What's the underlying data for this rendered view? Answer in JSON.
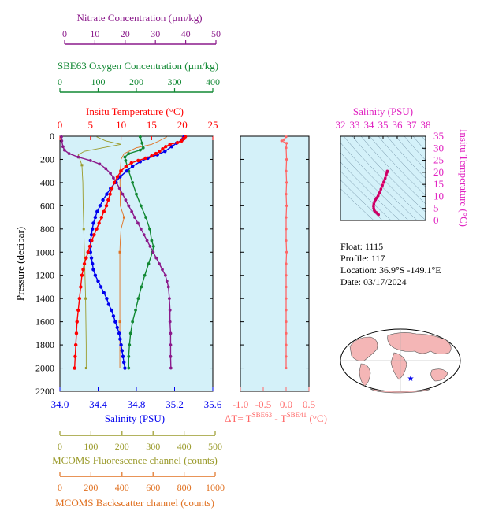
{
  "info": {
    "float": "Float:  1115",
    "profile": "Profile:  117",
    "location": "Location:  36.9°S  -149.1°E",
    "date": "Date:  03/17/2024"
  },
  "colors": {
    "nitrate": "#8b1a8b",
    "oxygen": "#118833",
    "temperature": "#ff0000",
    "salinity": "#0000ee",
    "fluorescence": "#9a9a2a",
    "backscatter": "#e07020",
    "deltaT": "#ff6666",
    "ts_label": "#e020c0",
    "panel_bg": "#d4f1f9"
  },
  "chart_data": [
    {
      "type": "line",
      "name": "profile-panel",
      "ylabel": "Pressure (decibar)",
      "ylim": [
        2200,
        0
      ],
      "yticks": [
        0,
        200,
        400,
        600,
        800,
        1000,
        1200,
        1400,
        1600,
        1800,
        2000,
        2200
      ],
      "axes": {
        "nitrate": {
          "label": "Nitrate Concentration (µm/kg)",
          "range": [
            0,
            50
          ],
          "ticks": [
            0,
            10,
            20,
            30,
            40,
            50
          ]
        },
        "oxygen": {
          "label": "SBE63 Oxygen Concentration (µm/kg)",
          "range": [
            0,
            400
          ],
          "ticks": [
            0,
            100,
            200,
            300,
            400
          ]
        },
        "temperature": {
          "label": "Insitu Temperature (°C)",
          "range": [
            0,
            25
          ],
          "ticks": [
            0,
            5,
            10,
            15,
            20,
            25
          ]
        },
        "salinity": {
          "label": "Salinity (PSU)",
          "range": [
            34.0,
            35.6
          ],
          "ticks": [
            "34.0",
            "34.4",
            "34.8",
            "35.2",
            "35.6"
          ]
        },
        "fluorescence": {
          "label": "MCOMS Fluorescence channel (counts)",
          "range": [
            0,
            500
          ],
          "ticks": [
            0,
            100,
            200,
            300,
            400,
            500
          ]
        },
        "backscatter": {
          "label": "MCOMS Backscatter channel (counts)",
          "range": [
            0,
            1000
          ],
          "ticks": [
            0,
            200,
            400,
            600,
            800,
            1000
          ]
        }
      },
      "series": [
        {
          "key": "temperature",
          "points": [
            [
              20.5,
              5
            ],
            [
              20.3,
              20
            ],
            [
              19.9,
              40
            ],
            [
              19.2,
              55
            ],
            [
              18.0,
              70
            ],
            [
              17.3,
              90
            ],
            [
              16.8,
              110
            ],
            [
              16.3,
              130
            ],
            [
              15.7,
              150
            ],
            [
              15.0,
              170
            ],
            [
              14.0,
              190
            ],
            [
              12.8,
              210
            ],
            [
              11.7,
              230
            ],
            [
              10.8,
              260
            ],
            [
              10.0,
              300
            ],
            [
              9.4,
              350
            ],
            [
              8.9,
              400
            ],
            [
              8.5,
              450
            ],
            [
              8.2,
              500
            ],
            [
              7.9,
              550
            ],
            [
              7.6,
              600
            ],
            [
              7.2,
              650
            ],
            [
              6.8,
              700
            ],
            [
              6.4,
              750
            ],
            [
              6.0,
              800
            ],
            [
              5.6,
              850
            ],
            [
              5.2,
              900
            ],
            [
              4.9,
              950
            ],
            [
              4.6,
              1000
            ],
            [
              4.3,
              1050
            ],
            [
              4.0,
              1100
            ],
            [
              3.8,
              1150
            ],
            [
              3.6,
              1200
            ],
            [
              3.4,
              1300
            ],
            [
              3.2,
              1400
            ],
            [
              3.0,
              1500
            ],
            [
              2.8,
              1600
            ],
            [
              2.7,
              1700
            ],
            [
              2.6,
              1800
            ],
            [
              2.5,
              1900
            ],
            [
              2.4,
              2000
            ]
          ]
        },
        {
          "key": "salinity",
          "points": [
            [
              35.3,
              5
            ],
            [
              35.28,
              30
            ],
            [
              35.22,
              60
            ],
            [
              35.17,
              90
            ],
            [
              35.1,
              130
            ],
            [
              35.02,
              160
            ],
            [
              34.92,
              190
            ],
            [
              34.84,
              220
            ],
            [
              34.76,
              260
            ],
            [
              34.7,
              300
            ],
            [
              34.63,
              350
            ],
            [
              34.58,
              400
            ],
            [
              34.53,
              450
            ],
            [
              34.49,
              500
            ],
            [
              34.45,
              550
            ],
            [
              34.42,
              600
            ],
            [
              34.39,
              650
            ],
            [
              34.37,
              700
            ],
            [
              34.35,
              750
            ],
            [
              34.34,
              800
            ],
            [
              34.33,
              850
            ],
            [
              34.32,
              900
            ],
            [
              34.32,
              950
            ],
            [
              34.32,
              1000
            ],
            [
              34.33,
              1050
            ],
            [
              34.34,
              1100
            ],
            [
              34.35,
              1150
            ],
            [
              34.37,
              1200
            ],
            [
              34.4,
              1250
            ],
            [
              34.43,
              1300
            ],
            [
              34.46,
              1350
            ],
            [
              34.49,
              1400
            ],
            [
              34.51,
              1450
            ],
            [
              34.54,
              1500
            ],
            [
              34.56,
              1550
            ],
            [
              34.58,
              1600
            ],
            [
              34.6,
              1650
            ],
            [
              34.62,
              1700
            ],
            [
              34.63,
              1750
            ],
            [
              34.64,
              1800
            ],
            [
              34.65,
              1850
            ],
            [
              34.66,
              1900
            ],
            [
              34.67,
              1950
            ],
            [
              34.68,
              2000
            ]
          ]
        },
        {
          "key": "nitrate",
          "points": [
            [
              0.5,
              5
            ],
            [
              0.6,
              40
            ],
            [
              1.0,
              90
            ],
            [
              1.5,
              120
            ],
            [
              3.0,
              150
            ],
            [
              6.0,
              180
            ],
            [
              10.0,
              210
            ],
            [
              13.0,
              240
            ],
            [
              15.0,
              280
            ],
            [
              16.5,
              320
            ],
            [
              17.5,
              360
            ],
            [
              18.5,
              400
            ],
            [
              19.5,
              450
            ],
            [
              20.5,
              500
            ],
            [
              21.5,
              550
            ],
            [
              22.5,
              600
            ],
            [
              23.5,
              650
            ],
            [
              24.5,
              700
            ],
            [
              25.5,
              750
            ],
            [
              26.5,
              800
            ],
            [
              27.5,
              850
            ],
            [
              28.5,
              900
            ],
            [
              29.5,
              950
            ],
            [
              30.5,
              1000
            ],
            [
              31.5,
              1050
            ],
            [
              32.5,
              1100
            ],
            [
              33.5,
              1150
            ],
            [
              34.5,
              1200
            ],
            [
              35.0,
              1250
            ],
            [
              35.5,
              1300
            ],
            [
              35.8,
              1400
            ],
            [
              36.0,
              1500
            ],
            [
              36.0,
              1600
            ],
            [
              36.2,
              1700
            ],
            [
              36.2,
              1800
            ],
            [
              36.2,
              1900
            ],
            [
              36.3,
              2000
            ]
          ]
        },
        {
          "key": "oxygen",
          "points": [
            [
              210,
              5
            ],
            [
              215,
              60
            ],
            [
              218,
              100
            ],
            [
              210,
              120
            ],
            [
              180,
              150
            ],
            [
              170,
              180
            ],
            [
              172,
              210
            ],
            [
              180,
              300
            ],
            [
              190,
              400
            ],
            [
              200,
              500
            ],
            [
              212,
              600
            ],
            [
              225,
              700
            ],
            [
              235,
              800
            ],
            [
              240,
              900
            ],
            [
              245,
              950
            ],
            [
              242,
              1000
            ],
            [
              232,
              1100
            ],
            [
              222,
              1200
            ],
            [
              213,
              1300
            ],
            [
              205,
              1400
            ],
            [
              198,
              1500
            ],
            [
              190,
              1600
            ],
            [
              185,
              1700
            ],
            [
              182,
              1800
            ],
            [
              180,
              1900
            ],
            [
              180,
              2000
            ]
          ]
        },
        {
          "key": "fluorescence",
          "points": [
            [
              120,
              5
            ],
            [
              150,
              40
            ],
            [
              200,
              70
            ],
            [
              140,
              100
            ],
            [
              80,
              130
            ],
            [
              60,
              160
            ],
            [
              72,
              250
            ],
            [
              75,
              400
            ],
            [
              76,
              600
            ],
            [
              78,
              800
            ],
            [
              80,
              1000
            ],
            [
              82,
              1200
            ],
            [
              84,
              1400
            ],
            [
              85,
              1600
            ],
            [
              86,
              1800
            ],
            [
              86,
              2000
            ]
          ]
        },
        {
          "key": "backscatter",
          "points": [
            [
              700,
              5
            ],
            [
              650,
              40
            ],
            [
              600,
              70
            ],
            [
              500,
              100
            ],
            [
              420,
              150
            ],
            [
              400,
              200
            ],
            [
              395,
              300
            ],
            [
              393,
              400
            ],
            [
              395,
              600
            ],
            [
              420,
              700
            ],
            [
              400,
              800
            ],
            [
              395,
              900
            ],
            [
              392,
              1000
            ],
            [
              392,
              1200
            ],
            [
              392,
              1400
            ],
            [
              392,
              1600
            ],
            [
              392,
              1800
            ],
            [
              392,
              2000
            ]
          ]
        }
      ]
    },
    {
      "type": "line",
      "name": "delta-t-panel",
      "xlabel": "ΔT= T SBE63 - T SBE41 (°C)",
      "xlim": [
        -1.0,
        0.5
      ],
      "xticks": [
        "-1.0",
        "-0.5",
        "0.0",
        "0.5"
      ],
      "ylim": [
        2200,
        0
      ],
      "points": [
        [
          0.0,
          5
        ],
        [
          -0.05,
          30
        ],
        [
          -0.1,
          40
        ],
        [
          0.01,
          60
        ],
        [
          0.0,
          100
        ],
        [
          0.01,
          200
        ],
        [
          0.0,
          300
        ],
        [
          0.01,
          400
        ],
        [
          0.0,
          500
        ],
        [
          0.01,
          600
        ],
        [
          0.0,
          700
        ],
        [
          0.0,
          800
        ],
        [
          0.0,
          900
        ],
        [
          0.01,
          1000
        ],
        [
          0.0,
          1100
        ],
        [
          0.0,
          1200
        ],
        [
          0.0,
          1300
        ],
        [
          0.0,
          1400
        ],
        [
          0.0,
          1500
        ],
        [
          0.0,
          1600
        ],
        [
          0.0,
          1700
        ],
        [
          0.0,
          1800
        ],
        [
          0.0,
          1900
        ],
        [
          0.0,
          2000
        ]
      ]
    },
    {
      "type": "scatter",
      "name": "ts-panel",
      "xlabel": "Salinity (PSU)",
      "ylabel": "Insitu Temperature (°C)",
      "xlim": [
        32,
        38
      ],
      "ylim": [
        0,
        35
      ],
      "xticks": [
        32,
        33,
        34,
        35,
        36,
        37,
        38
      ],
      "yticks": [
        0,
        5,
        10,
        15,
        20,
        25,
        30,
        35
      ],
      "points": [
        [
          34.68,
          2.4
        ],
        [
          34.62,
          2.8
        ],
        [
          34.55,
          3.2
        ],
        [
          34.45,
          3.6
        ],
        [
          34.38,
          4.2
        ],
        [
          34.34,
          5.0
        ],
        [
          34.33,
          5.8
        ],
        [
          34.35,
          6.8
        ],
        [
          34.4,
          7.8
        ],
        [
          34.47,
          8.6
        ],
        [
          34.55,
          9.4
        ],
        [
          34.65,
          10.2
        ],
        [
          34.75,
          11.5
        ],
        [
          34.85,
          13.0
        ],
        [
          34.95,
          14.5
        ],
        [
          35.05,
          16.0
        ],
        [
          35.15,
          17.5
        ],
        [
          35.22,
          19.0
        ],
        [
          35.28,
          20.0
        ],
        [
          35.3,
          20.5
        ]
      ]
    }
  ]
}
